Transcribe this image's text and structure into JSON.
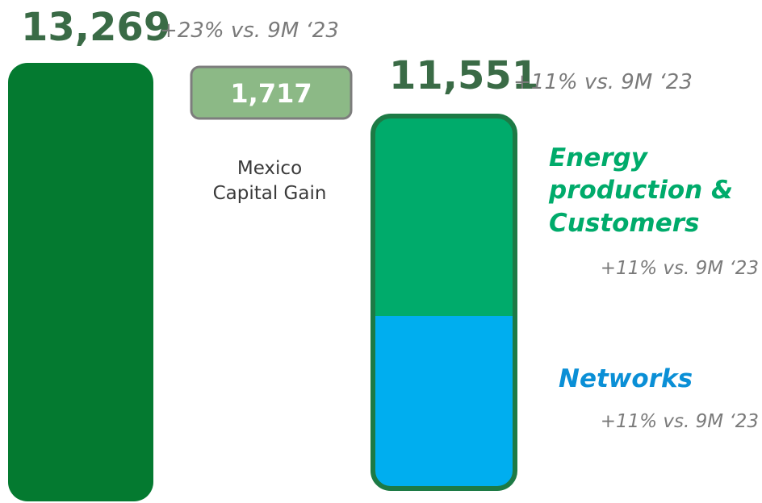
{
  "total": {
    "value": "13,269",
    "change": "+23% vs. 9M ‘23"
  },
  "capital_gain": {
    "value": "1,717",
    "label": [
      "Mexico",
      "Capital Gain"
    ]
  },
  "comparable": {
    "value": "11,551",
    "change": "+11% vs. 9M ‘23"
  },
  "segments": [
    {
      "name": [
        "Energy",
        "production &",
        "Customers"
      ],
      "change": "+11% vs. 9M ‘23"
    },
    {
      "name": [
        "Networks"
      ],
      "change": "+11% vs. 9M ‘23"
    }
  ]
}
